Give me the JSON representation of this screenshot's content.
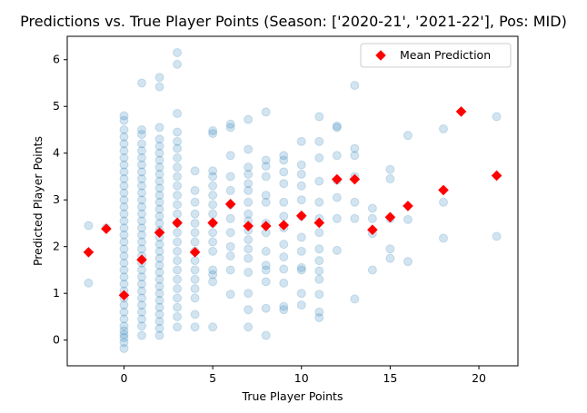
{
  "chart_data": {
    "type": "scatter",
    "title": "Predictions vs. True Player Points (Season: ['2020-21', '2021-22'], Pos: MID)",
    "xlabel": "True Player Points",
    "ylabel": "Predicted Player Points",
    "xlim": [
      -3.2,
      22.2
    ],
    "ylim": [
      -0.55,
      6.5
    ],
    "xticks": [
      0,
      5,
      10,
      15,
      20
    ],
    "yticks": [
      0,
      1,
      2,
      3,
      4,
      5,
      6
    ],
    "grid": false,
    "legend_position": "top-right",
    "series": [
      {
        "name": "",
        "kind": "points",
        "color": "#1f77b4",
        "alpha": 0.2,
        "points": [
          [
            -2,
            2.45
          ],
          [
            -2,
            1.22
          ],
          [
            -1,
            2.4
          ],
          [
            0,
            4.8
          ],
          [
            0,
            4.7
          ],
          [
            0,
            4.5
          ],
          [
            0,
            4.35
          ],
          [
            0,
            4.2
          ],
          [
            0,
            4.05
          ],
          [
            0,
            3.9
          ],
          [
            0,
            3.75
          ],
          [
            0,
            3.6
          ],
          [
            0,
            3.45
          ],
          [
            0,
            3.3
          ],
          [
            0,
            3.15
          ],
          [
            0,
            3.0
          ],
          [
            0,
            2.85
          ],
          [
            0,
            2.7
          ],
          [
            0,
            2.55
          ],
          [
            0,
            2.4
          ],
          [
            0,
            2.25
          ],
          [
            0,
            2.1
          ],
          [
            0,
            1.95
          ],
          [
            0,
            1.8
          ],
          [
            0,
            1.65
          ],
          [
            0,
            1.5
          ],
          [
            0,
            1.35
          ],
          [
            0,
            1.2
          ],
          [
            0,
            1.05
          ],
          [
            0,
            0.9
          ],
          [
            0,
            0.75
          ],
          [
            0,
            0.6
          ],
          [
            0,
            0.45
          ],
          [
            0,
            0.3
          ],
          [
            0,
            0.2
          ],
          [
            0,
            0.05
          ],
          [
            0,
            -0.05
          ],
          [
            0,
            -0.18
          ],
          [
            0,
            0.12
          ],
          [
            1,
            5.5
          ],
          [
            1,
            4.5
          ],
          [
            1,
            4.4
          ],
          [
            1,
            4.2
          ],
          [
            1,
            4.05
          ],
          [
            1,
            3.9
          ],
          [
            1,
            3.75
          ],
          [
            1,
            3.6
          ],
          [
            1,
            3.45
          ],
          [
            1,
            3.3
          ],
          [
            1,
            3.15
          ],
          [
            1,
            3.0
          ],
          [
            1,
            2.85
          ],
          [
            1,
            2.7
          ],
          [
            1,
            2.55
          ],
          [
            1,
            2.4
          ],
          [
            1,
            2.25
          ],
          [
            1,
            2.1
          ],
          [
            1,
            1.95
          ],
          [
            1,
            1.8
          ],
          [
            1,
            1.65
          ],
          [
            1,
            1.5
          ],
          [
            1,
            1.35
          ],
          [
            1,
            1.2
          ],
          [
            1,
            1.05
          ],
          [
            1,
            0.9
          ],
          [
            1,
            0.75
          ],
          [
            1,
            0.6
          ],
          [
            1,
            0.45
          ],
          [
            1,
            0.3
          ],
          [
            1,
            0.1
          ],
          [
            2,
            5.62
          ],
          [
            2,
            5.42
          ],
          [
            2,
            4.55
          ],
          [
            2,
            4.3
          ],
          [
            2,
            4.15
          ],
          [
            2,
            4.0
          ],
          [
            2,
            3.85
          ],
          [
            2,
            3.7
          ],
          [
            2,
            3.55
          ],
          [
            2,
            3.4
          ],
          [
            2,
            3.25
          ],
          [
            2,
            3.1
          ],
          [
            2,
            2.95
          ],
          [
            2,
            2.8
          ],
          [
            2,
            2.65
          ],
          [
            2,
            2.5
          ],
          [
            2,
            2.35
          ],
          [
            2,
            2.2
          ],
          [
            2,
            2.05
          ],
          [
            2,
            1.9
          ],
          [
            2,
            1.75
          ],
          [
            2,
            1.6
          ],
          [
            2,
            1.45
          ],
          [
            2,
            1.3
          ],
          [
            2,
            1.15
          ],
          [
            2,
            1.0
          ],
          [
            2,
            0.85
          ],
          [
            2,
            0.7
          ],
          [
            2,
            0.55
          ],
          [
            2,
            0.4
          ],
          [
            2,
            0.25
          ],
          [
            2,
            0.1
          ],
          [
            3,
            6.15
          ],
          [
            3,
            5.9
          ],
          [
            3,
            4.85
          ],
          [
            3,
            4.45
          ],
          [
            3,
            4.25
          ],
          [
            3,
            4.1
          ],
          [
            3,
            3.9
          ],
          [
            3,
            3.7
          ],
          [
            3,
            3.5
          ],
          [
            3,
            3.3
          ],
          [
            3,
            3.1
          ],
          [
            3,
            2.9
          ],
          [
            3,
            2.7
          ],
          [
            3,
            2.5
          ],
          [
            3,
            2.3
          ],
          [
            3,
            2.1
          ],
          [
            3,
            1.9
          ],
          [
            3,
            1.7
          ],
          [
            3,
            1.5
          ],
          [
            3,
            1.3
          ],
          [
            3,
            1.1
          ],
          [
            3,
            0.9
          ],
          [
            3,
            0.7
          ],
          [
            3,
            0.5
          ],
          [
            3,
            0.28
          ],
          [
            4,
            3.62
          ],
          [
            4,
            3.2
          ],
          [
            4,
            2.95
          ],
          [
            4,
            2.7
          ],
          [
            4,
            2.5
          ],
          [
            4,
            2.3
          ],
          [
            4,
            2.1
          ],
          [
            4,
            1.9
          ],
          [
            4,
            1.7
          ],
          [
            4,
            1.5
          ],
          [
            4,
            1.3
          ],
          [
            4,
            1.1
          ],
          [
            4,
            0.9
          ],
          [
            4,
            0.55
          ],
          [
            4,
            0.28
          ],
          [
            5,
            4.48
          ],
          [
            5,
            4.42
          ],
          [
            5,
            3.62
          ],
          [
            5,
            3.5
          ],
          [
            5,
            3.3
          ],
          [
            5,
            3.1
          ],
          [
            5,
            2.9
          ],
          [
            5,
            2.7
          ],
          [
            5,
            2.5
          ],
          [
            5,
            2.3
          ],
          [
            5,
            2.1
          ],
          [
            5,
            1.9
          ],
          [
            5,
            1.5
          ],
          [
            5,
            1.4
          ],
          [
            5,
            1.25
          ],
          [
            5,
            0.28
          ],
          [
            6,
            4.62
          ],
          [
            6,
            4.55
          ],
          [
            6,
            3.95
          ],
          [
            6,
            3.5
          ],
          [
            6,
            3.2
          ],
          [
            6,
            2.9
          ],
          [
            6,
            2.6
          ],
          [
            6,
            2.3
          ],
          [
            6,
            2.0
          ],
          [
            6,
            1.8
          ],
          [
            6,
            1.5
          ],
          [
            6,
            0.98
          ],
          [
            7,
            4.72
          ],
          [
            7,
            4.08
          ],
          [
            7,
            3.7
          ],
          [
            7,
            3.55
          ],
          [
            7,
            3.35
          ],
          [
            7,
            3.2
          ],
          [
            7,
            2.95
          ],
          [
            7,
            2.7
          ],
          [
            7,
            2.55
          ],
          [
            7,
            2.35
          ],
          [
            7,
            2.15
          ],
          [
            7,
            1.95
          ],
          [
            7,
            1.75
          ],
          [
            7,
            1.45
          ],
          [
            7,
            1.0
          ],
          [
            7,
            0.65
          ],
          [
            7,
            0.28
          ],
          [
            8,
            4.88
          ],
          [
            8,
            3.85
          ],
          [
            8,
            3.72
          ],
          [
            8,
            3.5
          ],
          [
            8,
            3.1
          ],
          [
            8,
            2.95
          ],
          [
            8,
            2.5
          ],
          [
            8,
            2.3
          ],
          [
            8,
            1.9
          ],
          [
            8,
            1.6
          ],
          [
            8,
            1.5
          ],
          [
            8,
            1.25
          ],
          [
            8,
            0.68
          ],
          [
            8,
            0.1
          ],
          [
            9,
            3.95
          ],
          [
            9,
            3.85
          ],
          [
            9,
            3.6
          ],
          [
            9,
            3.35
          ],
          [
            9,
            2.95
          ],
          [
            9,
            2.65
          ],
          [
            9,
            2.4
          ],
          [
            9,
            2.05
          ],
          [
            9,
            1.78
          ],
          [
            9,
            1.52
          ],
          [
            9,
            1.22
          ],
          [
            9,
            0.72
          ],
          [
            9,
            0.65
          ],
          [
            10,
            4.25
          ],
          [
            10,
            3.75
          ],
          [
            10,
            3.55
          ],
          [
            10,
            3.3
          ],
          [
            10,
            3.0
          ],
          [
            10,
            2.65
          ],
          [
            10,
            2.2
          ],
          [
            10,
            1.9
          ],
          [
            10,
            1.55
          ],
          [
            10,
            1.5
          ],
          [
            10,
            1.0
          ],
          [
            10,
            0.75
          ],
          [
            11,
            4.78
          ],
          [
            11,
            4.25
          ],
          [
            11,
            3.9
          ],
          [
            11,
            3.4
          ],
          [
            11,
            2.95
          ],
          [
            11,
            2.6
          ],
          [
            11,
            2.3
          ],
          [
            11,
            1.95
          ],
          [
            11,
            1.7
          ],
          [
            11,
            1.48
          ],
          [
            11,
            1.3
          ],
          [
            11,
            0.98
          ],
          [
            11,
            0.6
          ],
          [
            11,
            0.48
          ],
          [
            12,
            4.58
          ],
          [
            12,
            4.55
          ],
          [
            12,
            3.95
          ],
          [
            12,
            3.42
          ],
          [
            12,
            3.05
          ],
          [
            12,
            2.6
          ],
          [
            12,
            1.92
          ],
          [
            13,
            5.45
          ],
          [
            13,
            4.1
          ],
          [
            13,
            3.95
          ],
          [
            13,
            3.5
          ],
          [
            13,
            2.95
          ],
          [
            13,
            2.6
          ],
          [
            13,
            0.88
          ],
          [
            14,
            2.82
          ],
          [
            14,
            2.6
          ],
          [
            14,
            2.28
          ],
          [
            14,
            1.5
          ],
          [
            15,
            3.65
          ],
          [
            15,
            3.45
          ],
          [
            15,
            2.6
          ],
          [
            15,
            1.95
          ],
          [
            15,
            1.75
          ],
          [
            16,
            4.38
          ],
          [
            16,
            2.58
          ],
          [
            16,
            1.68
          ],
          [
            18,
            4.52
          ],
          [
            18,
            2.95
          ],
          [
            18,
            2.18
          ],
          [
            21,
            4.78
          ],
          [
            21,
            2.22
          ]
        ]
      },
      {
        "name": "Mean Prediction",
        "kind": "mean",
        "color": "#ff0000",
        "x": [
          -2,
          -1,
          0,
          1,
          2,
          3,
          4,
          5,
          6,
          7,
          8,
          9,
          10,
          11,
          12,
          13,
          14,
          15,
          16,
          18,
          19,
          21
        ],
        "values": [
          1.88,
          2.38,
          0.96,
          1.72,
          2.3,
          2.51,
          1.88,
          2.51,
          2.91,
          2.44,
          2.44,
          2.46,
          2.66,
          2.51,
          3.44,
          3.44,
          2.36,
          2.63,
          2.87,
          3.21,
          4.89,
          3.52
        ]
      }
    ]
  }
}
